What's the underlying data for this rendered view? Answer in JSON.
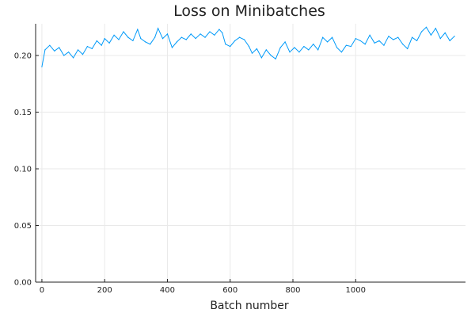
{
  "chart_data": {
    "type": "line",
    "title": "Loss on Minibatches",
    "xlabel": "Batch number",
    "ylabel": "",
    "xlim": [
      -20,
      1350
    ],
    "ylim": [
      0,
      0.228
    ],
    "xticks": [
      0,
      200,
      400,
      600,
      800,
      1000
    ],
    "xtick_labels": [
      "0",
      "200",
      "400",
      "600",
      "800",
      "1000"
    ],
    "yticks": [
      0,
      0.05,
      0.1,
      0.15,
      0.2
    ],
    "ytick_labels": [
      "0.00",
      "0.05",
      "0.10",
      "0.15",
      "0.20"
    ],
    "grid": true,
    "legend": "none",
    "series": [
      {
        "color": "#009af9",
        "x": [
          0,
          10,
          25,
          40,
          55,
          70,
          85,
          100,
          115,
          130,
          145,
          160,
          175,
          190,
          200,
          215,
          230,
          245,
          260,
          275,
          290,
          305,
          315,
          330,
          345,
          360,
          370,
          385,
          400,
          415,
          430,
          445,
          460,
          475,
          490,
          505,
          520,
          535,
          550,
          565,
          575,
          585,
          600,
          615,
          630,
          645,
          660,
          670,
          685,
          700,
          715,
          730,
          745,
          760,
          775,
          790,
          805,
          820,
          835,
          850,
          865,
          880,
          895,
          910,
          925,
          940,
          955,
          970,
          985,
          1000,
          1015,
          1030,
          1045,
          1060,
          1075,
          1090,
          1105,
          1120,
          1135,
          1150,
          1165,
          1180,
          1195,
          1210,
          1225,
          1240,
          1255,
          1270,
          1285,
          1300,
          1315
        ],
        "values": [
          0.19,
          0.205,
          0.209,
          0.204,
          0.207,
          0.2,
          0.203,
          0.198,
          0.205,
          0.201,
          0.208,
          0.206,
          0.213,
          0.209,
          0.215,
          0.211,
          0.218,
          0.214,
          0.221,
          0.216,
          0.213,
          0.223,
          0.215,
          0.212,
          0.21,
          0.216,
          0.224,
          0.215,
          0.219,
          0.207,
          0.212,
          0.216,
          0.214,
          0.219,
          0.215,
          0.219,
          0.216,
          0.221,
          0.218,
          0.223,
          0.22,
          0.21,
          0.208,
          0.213,
          0.216,
          0.214,
          0.208,
          0.202,
          0.206,
          0.198,
          0.205,
          0.2,
          0.197,
          0.207,
          0.212,
          0.203,
          0.207,
          0.203,
          0.208,
          0.205,
          0.21,
          0.205,
          0.216,
          0.212,
          0.216,
          0.207,
          0.203,
          0.209,
          0.208,
          0.215,
          0.213,
          0.21,
          0.218,
          0.211,
          0.213,
          0.209,
          0.217,
          0.214,
          0.216,
          0.21,
          0.206,
          0.216,
          0.213,
          0.221,
          0.225,
          0.218,
          0.224,
          0.215,
          0.22,
          0.213,
          0.217
        ]
      }
    ]
  }
}
